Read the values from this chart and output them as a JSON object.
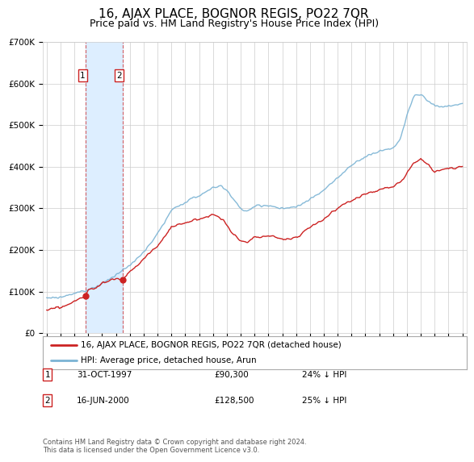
{
  "title": "16, AJAX PLACE, BOGNOR REGIS, PO22 7QR",
  "subtitle": "Price paid vs. HM Land Registry's House Price Index (HPI)",
  "legend_label_red": "16, AJAX PLACE, BOGNOR REGIS, PO22 7QR (detached house)",
  "legend_label_blue": "HPI: Average price, detached house, Arun",
  "footnote": "Contains HM Land Registry data © Crown copyright and database right 2024.\nThis data is licensed under the Open Government Licence v3.0.",
  "transactions": [
    {
      "num": 1,
      "date": "31-OCT-1997",
      "price": 90300,
      "pct": "24% ↓ HPI",
      "year": 1997.83
    },
    {
      "num": 2,
      "date": "16-JUN-2000",
      "price": 128500,
      "pct": "25% ↓ HPI",
      "year": 2000.46
    }
  ],
  "ylim": [
    0,
    700000
  ],
  "xlim_start": 1994.7,
  "xlim_end": 2025.3,
  "hpi_color": "#7ab3d4",
  "price_color": "#cc2222",
  "shade_color": "#ddeeff",
  "background_color": "#ffffff",
  "grid_color": "#cccccc",
  "title_fontsize": 11,
  "subtitle_fontsize": 9
}
